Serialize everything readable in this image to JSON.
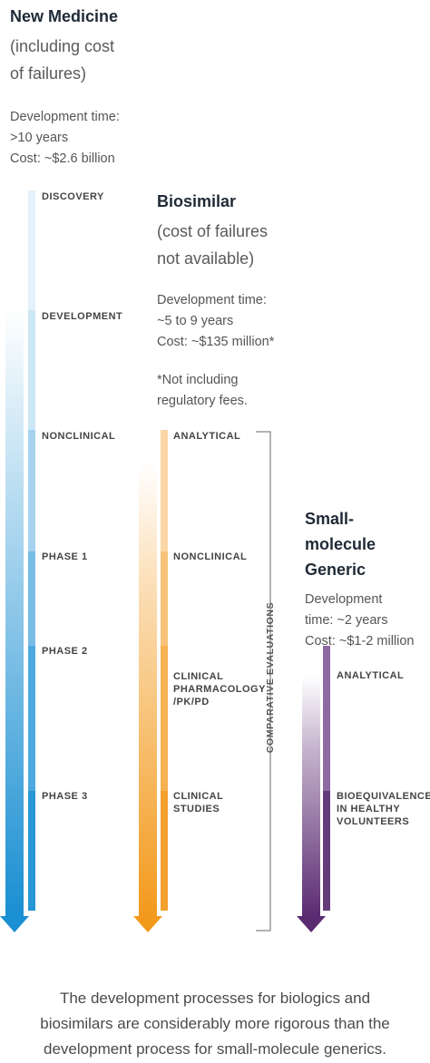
{
  "new_medicine": {
    "title": "New Medicine",
    "subtitle_1": "(including cost",
    "subtitle_2": "of failures)",
    "dev_time_label": "Development time:",
    "dev_time_value": ">10 years",
    "cost": "Cost: ~$2.6 billion",
    "stages": [
      "DISCOVERY",
      "DEVELOPMENT",
      "NONCLINICAL",
      "PHASE 1",
      "PHASE 2",
      "PHASE 3"
    ],
    "color": "#1a8fd2"
  },
  "biosimilar": {
    "title": "Biosimilar",
    "subtitle_1": "(cost of failures",
    "subtitle_2": "not available)",
    "dev_time_label": "Development time:",
    "dev_time_value": "~5 to 9 years",
    "cost": "Cost: ~$135 million*",
    "footnote_1": "*Not including",
    "footnote_2": "regulatory fees.",
    "stages": [
      [
        "ANALYTICAL"
      ],
      [
        "NONCLINICAL"
      ],
      [
        "CLINICAL",
        "PHARMACOLOGY",
        "/PK/PD"
      ],
      [
        "CLINICAL",
        "STUDIES"
      ]
    ],
    "bracket_label": "COMPARATIVE EVALUATIONS",
    "color": "#f39a1d"
  },
  "generic": {
    "title_1": "Small-",
    "title_2": "molecule",
    "title_3": "Generic",
    "dev_time_label": "Development",
    "dev_time_value": "time: ~2 years",
    "cost": "Cost: ~$1-2 million",
    "stages": [
      [
        "ANALYTICAL"
      ],
      [
        "BIOEQUIVALENCE",
        "IN HEALTHY",
        "VOLUNTEERS"
      ]
    ],
    "color": "#5b2b72"
  },
  "caption": {
    "line_1": "The development processes for biologics and",
    "line_2": "biosimilars are considerably more rigorous than the",
    "line_3": "development process for small-molecule generics."
  }
}
